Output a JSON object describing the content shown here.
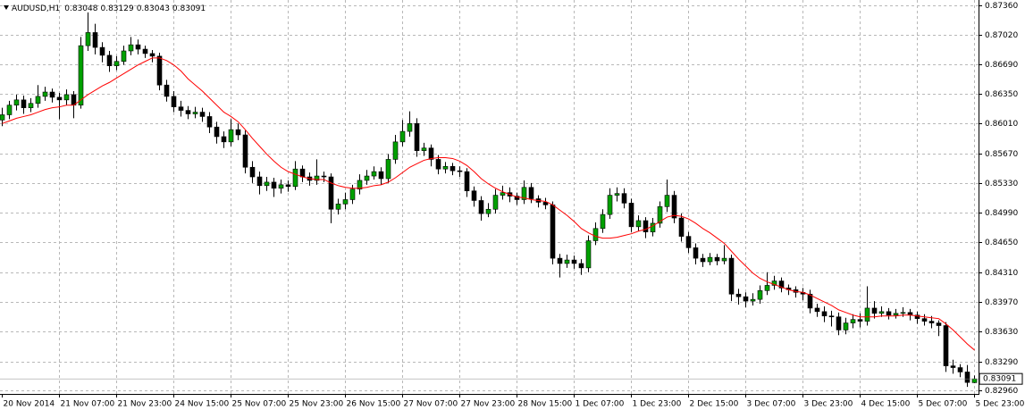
{
  "chart_data": {
    "type": "candlestick",
    "symbol": "AUDUSD,H1",
    "categories": [
      "20 Nov 2014",
      null,
      null,
      null,
      null,
      null,
      null,
      null,
      "21 Nov 07:00",
      null,
      null,
      null,
      null,
      null,
      null,
      null,
      "21 Nov 23:00",
      null,
      null,
      null,
      null,
      null,
      null,
      null,
      "24 Nov 15:00",
      null,
      null,
      null,
      null,
      null,
      null,
      null,
      "25 Nov 07:00",
      null,
      null,
      null,
      null,
      null,
      null,
      null,
      "25 Nov 23:00",
      null,
      null,
      null,
      null,
      null,
      null,
      null,
      "26 Nov 15:00",
      null,
      null,
      null,
      null,
      null,
      null,
      null,
      "27 Nov 07:00",
      null,
      null,
      null,
      null,
      null,
      null,
      null,
      "27 Nov 23:00",
      null,
      null,
      null,
      null,
      null,
      null,
      null,
      "28 Nov 15:00",
      null,
      null,
      null,
      null,
      null,
      null,
      null,
      "1 Dec 07:00",
      null,
      null,
      null,
      null,
      null,
      null,
      null,
      "1 Dec 23:00",
      null,
      null,
      null,
      null,
      null,
      null,
      null,
      "2 Dec 15:00",
      null,
      null,
      null,
      null,
      null,
      null,
      null,
      "3 Dec 07:00",
      null,
      null,
      null,
      null,
      null,
      null,
      null,
      "3 Dec 23:00",
      null,
      null,
      null,
      null,
      null,
      null,
      null,
      "4 Dec 15:00",
      null,
      null,
      null,
      null,
      null,
      null,
      null,
      "5 Dec 07:00",
      null,
      null,
      null,
      null,
      null,
      null,
      null,
      "5 Dec 23:00"
    ],
    "open": [
      0.8605,
      0.8611,
      0.8622,
      0.8628,
      0.8619,
      0.8624,
      0.8632,
      0.8637,
      0.8631,
      0.8628,
      0.8634,
      0.8622,
      0.869,
      0.8705,
      0.8688,
      0.8679,
      0.8667,
      0.8672,
      0.8684,
      0.8691,
      0.8686,
      0.8681,
      0.8678,
      0.8645,
      0.8632,
      0.862,
      0.8616,
      0.8612,
      0.8614,
      0.8609,
      0.8597,
      0.8586,
      0.858,
      0.8594,
      0.8588,
      0.8551,
      0.854,
      0.853,
      0.8534,
      0.8527,
      0.8531,
      0.8529,
      0.8549,
      0.854,
      0.8536,
      0.8541,
      0.854,
      0.8503,
      0.8509,
      0.8514,
      0.8526,
      0.8536,
      0.8541,
      0.8546,
      0.8538,
      0.856,
      0.858,
      0.8592,
      0.8601,
      0.857,
      0.8573,
      0.856,
      0.8549,
      0.8552,
      0.8547,
      0.8546,
      0.8524,
      0.8513,
      0.8498,
      0.8503,
      0.8519,
      0.8522,
      0.8518,
      0.8514,
      0.8528,
      0.8515,
      0.8511,
      0.8508,
      0.8447,
      0.8441,
      0.8445,
      0.8441,
      0.8436,
      0.8467,
      0.8481,
      0.8497,
      0.8519,
      0.8521,
      0.851,
      0.8483,
      0.849,
      0.8477,
      0.8487,
      0.8506,
      0.8519,
      0.8493,
      0.8472,
      0.8459,
      0.8447,
      0.8443,
      0.8448,
      0.8444,
      0.8447,
      0.8406,
      0.8403,
      0.8398,
      0.84,
      0.841,
      0.8416,
      0.8421,
      0.8413,
      0.8411,
      0.8408,
      0.8406,
      0.839,
      0.8386,
      0.8381,
      0.838,
      0.8365,
      0.8373,
      0.8377,
      0.8375,
      0.839,
      0.8384,
      0.8386,
      0.8382,
      0.8384,
      0.8385,
      0.8382,
      0.8378,
      0.8375,
      0.8373,
      0.837,
      0.8324,
      0.8322,
      0.8317,
      0.83048
    ],
    "high": [
      0.8619,
      0.8627,
      0.8634,
      0.8633,
      0.863,
      0.8645,
      0.8643,
      0.8641,
      0.8636,
      0.864,
      0.8638,
      0.87,
      0.8728,
      0.8715,
      0.8694,
      0.8684,
      0.8678,
      0.869,
      0.87,
      0.8697,
      0.869,
      0.8685,
      0.8682,
      0.8651,
      0.8638,
      0.8627,
      0.8621,
      0.862,
      0.8619,
      0.8614,
      0.8603,
      0.8592,
      0.8606,
      0.8601,
      0.8593,
      0.8558,
      0.8546,
      0.854,
      0.8539,
      0.8537,
      0.8536,
      0.8558,
      0.8553,
      0.8545,
      0.856,
      0.8546,
      0.8544,
      0.8515,
      0.8522,
      0.8531,
      0.8543,
      0.8548,
      0.8552,
      0.8551,
      0.8566,
      0.8588,
      0.8605,
      0.8615,
      0.8607,
      0.8579,
      0.8577,
      0.8565,
      0.8557,
      0.8556,
      0.8552,
      0.855,
      0.8529,
      0.8518,
      0.851,
      0.8526,
      0.853,
      0.8528,
      0.8522,
      0.8536,
      0.8533,
      0.8519,
      0.8516,
      0.8512,
      0.8452,
      0.8451,
      0.845,
      0.8446,
      0.8473,
      0.8488,
      0.8503,
      0.8527,
      0.8528,
      0.8527,
      0.8515,
      0.8496,
      0.8494,
      0.8493,
      0.8512,
      0.8537,
      0.8524,
      0.8498,
      0.8477,
      0.8464,
      0.8452,
      0.8453,
      0.8452,
      0.8462,
      0.8451,
      0.8412,
      0.8408,
      0.8407,
      0.8416,
      0.8431,
      0.8427,
      0.8425,
      0.8417,
      0.8415,
      0.8413,
      0.8411,
      0.8395,
      0.8392,
      0.8387,
      0.8385,
      0.8379,
      0.8383,
      0.8384,
      0.8415,
      0.8398,
      0.8392,
      0.839,
      0.8389,
      0.8391,
      0.8389,
      0.8386,
      0.8383,
      0.8381,
      0.8376,
      0.8374,
      0.8331,
      0.8326,
      0.8325,
      0.83129
    ],
    "low": [
      0.8598,
      0.8606,
      0.8616,
      0.8612,
      0.8614,
      0.8619,
      0.8627,
      0.8625,
      0.8606,
      0.8622,
      0.8607,
      0.8618,
      0.8684,
      0.868,
      0.8671,
      0.866,
      0.8662,
      0.8668,
      0.8679,
      0.868,
      0.8676,
      0.8671,
      0.8639,
      0.8626,
      0.8614,
      0.8609,
      0.8606,
      0.8607,
      0.8603,
      0.859,
      0.8578,
      0.8573,
      0.8575,
      0.8582,
      0.8544,
      0.8533,
      0.852,
      0.8524,
      0.8517,
      0.8521,
      0.8523,
      0.8525,
      0.8534,
      0.853,
      0.8531,
      0.8534,
      0.8487,
      0.8497,
      0.8503,
      0.8509,
      0.852,
      0.8531,
      0.8537,
      0.8531,
      0.8533,
      0.8555,
      0.8575,
      0.8586,
      0.8563,
      0.8564,
      0.8552,
      0.8543,
      0.8544,
      0.8542,
      0.854,
      0.8517,
      0.8506,
      0.849,
      0.8494,
      0.8498,
      0.8514,
      0.8511,
      0.8508,
      0.8509,
      0.851,
      0.8505,
      0.8503,
      0.844,
      0.8425,
      0.8436,
      0.8435,
      0.8428,
      0.8431,
      0.8462,
      0.8476,
      0.8492,
      0.8512,
      0.8504,
      0.8477,
      0.8478,
      0.847,
      0.8472,
      0.8482,
      0.85,
      0.8487,
      0.8466,
      0.8453,
      0.844,
      0.8437,
      0.8439,
      0.8439,
      0.844,
      0.8398,
      0.8394,
      0.8391,
      0.8393,
      0.8395,
      0.8405,
      0.8411,
      0.8408,
      0.8405,
      0.8402,
      0.8399,
      0.8384,
      0.838,
      0.8374,
      0.8369,
      0.8359,
      0.836,
      0.8367,
      0.8368,
      0.837,
      0.8378,
      0.838,
      0.8377,
      0.8378,
      0.838,
      0.8376,
      0.8372,
      0.837,
      0.8367,
      0.8358,
      0.8317,
      0.8315,
      0.8311,
      0.83,
      0.83043
    ],
    "close": [
      0.8611,
      0.8622,
      0.8628,
      0.8619,
      0.8624,
      0.8632,
      0.8637,
      0.8631,
      0.8628,
      0.8634,
      0.8622,
      0.869,
      0.8705,
      0.8688,
      0.8679,
      0.8667,
      0.8672,
      0.8684,
      0.8691,
      0.8686,
      0.8681,
      0.8678,
      0.8645,
      0.8632,
      0.862,
      0.8616,
      0.8612,
      0.8614,
      0.8609,
      0.8597,
      0.8586,
      0.858,
      0.8594,
      0.8588,
      0.8551,
      0.854,
      0.853,
      0.8534,
      0.8527,
      0.8531,
      0.8529,
      0.8549,
      0.854,
      0.8536,
      0.8541,
      0.854,
      0.8503,
      0.8509,
      0.8514,
      0.8526,
      0.8536,
      0.8541,
      0.8546,
      0.8538,
      0.856,
      0.858,
      0.8592,
      0.8601,
      0.857,
      0.8573,
      0.856,
      0.8549,
      0.8552,
      0.8547,
      0.8546,
      0.8524,
      0.8513,
      0.8498,
      0.8503,
      0.8519,
      0.8522,
      0.8518,
      0.8514,
      0.8528,
      0.8515,
      0.8511,
      0.8508,
      0.8447,
      0.8441,
      0.8445,
      0.8441,
      0.8436,
      0.8467,
      0.8481,
      0.8497,
      0.8519,
      0.8521,
      0.851,
      0.8483,
      0.849,
      0.8477,
      0.8487,
      0.8506,
      0.8519,
      0.8493,
      0.8472,
      0.8459,
      0.8447,
      0.8443,
      0.8448,
      0.8444,
      0.8447,
      0.8406,
      0.8403,
      0.8398,
      0.84,
      0.841,
      0.8416,
      0.8421,
      0.8413,
      0.8411,
      0.8408,
      0.8406,
      0.839,
      0.8386,
      0.8381,
      0.838,
      0.8365,
      0.8373,
      0.8377,
      0.8375,
      0.839,
      0.8384,
      0.8386,
      0.8382,
      0.8384,
      0.8385,
      0.8382,
      0.8378,
      0.8375,
      0.8373,
      0.837,
      0.8324,
      0.8322,
      0.8317,
      0.8305,
      0.83091
    ],
    "ma": [
      0.8601,
      0.8604,
      0.8607,
      0.8609,
      0.8611,
      0.8614,
      0.8617,
      0.8619,
      0.862,
      0.8622,
      0.8622,
      0.8628,
      0.8634,
      0.8639,
      0.8644,
      0.8648,
      0.8653,
      0.8658,
      0.8663,
      0.8668,
      0.8672,
      0.8676,
      0.8676,
      0.8673,
      0.8668,
      0.8661,
      0.8652,
      0.8645,
      0.8638,
      0.863,
      0.8622,
      0.8614,
      0.8609,
      0.8603,
      0.8594,
      0.8584,
      0.8575,
      0.8566,
      0.8558,
      0.8551,
      0.8546,
      0.8543,
      0.854,
      0.8538,
      0.8537,
      0.8537,
      0.8533,
      0.853,
      0.8528,
      0.8527,
      0.8527,
      0.8528,
      0.853,
      0.8531,
      0.8534,
      0.8539,
      0.8545,
      0.8551,
      0.8555,
      0.8559,
      0.8561,
      0.8562,
      0.8562,
      0.8561,
      0.8558,
      0.8553,
      0.8546,
      0.8538,
      0.8532,
      0.8527,
      0.8523,
      0.852,
      0.8517,
      0.8516,
      0.8514,
      0.8513,
      0.8512,
      0.8508,
      0.8502,
      0.8496,
      0.8489,
      0.8481,
      0.8476,
      0.8472,
      0.847,
      0.847,
      0.8471,
      0.8473,
      0.8475,
      0.8478,
      0.848,
      0.8484,
      0.8489,
      0.8494,
      0.8496,
      0.8495,
      0.8492,
      0.8487,
      0.8481,
      0.8476,
      0.847,
      0.8464,
      0.8455,
      0.8446,
      0.8438,
      0.843,
      0.8424,
      0.842,
      0.8417,
      0.8414,
      0.8411,
      0.8409,
      0.8408,
      0.8405,
      0.8401,
      0.8397,
      0.8393,
      0.8388,
      0.8385,
      0.8382,
      0.838,
      0.838,
      0.838,
      0.8381,
      0.8381,
      0.8381,
      0.8382,
      0.8382,
      0.8381,
      0.838,
      0.8379,
      0.8378,
      0.8372,
      0.8365,
      0.8357,
      0.8349,
      0.8342
    ],
    "up_color": "#00a000",
    "down_color": "#000000",
    "ma_color": "#ff0000",
    "grid": true,
    "ylim": [
      0.82919,
      0.87422
    ],
    "yticks": [
      {
        "value": 0.8736,
        "label": "0.87360"
      },
      {
        "value": 0.8702,
        "label": "0.87020"
      },
      {
        "value": 0.8669,
        "label": "0.86690"
      },
      {
        "value": 0.8635,
        "label": "0.86350"
      },
      {
        "value": 0.8601,
        "label": "0.86010"
      },
      {
        "value": 0.8567,
        "label": "0.85670"
      },
      {
        "value": 0.8533,
        "label": "0.85330"
      },
      {
        "value": 0.8499,
        "label": "0.84990"
      },
      {
        "value": 0.8465,
        "label": "0.84650"
      },
      {
        "value": 0.8431,
        "label": "0.84310"
      },
      {
        "value": 0.8397,
        "label": "0.83970"
      },
      {
        "value": 0.8363,
        "label": "0.83630"
      },
      {
        "value": 0.8329,
        "label": "0.83290"
      },
      {
        "value": 0.8296,
        "label": "0.82960"
      }
    ]
  }
}
